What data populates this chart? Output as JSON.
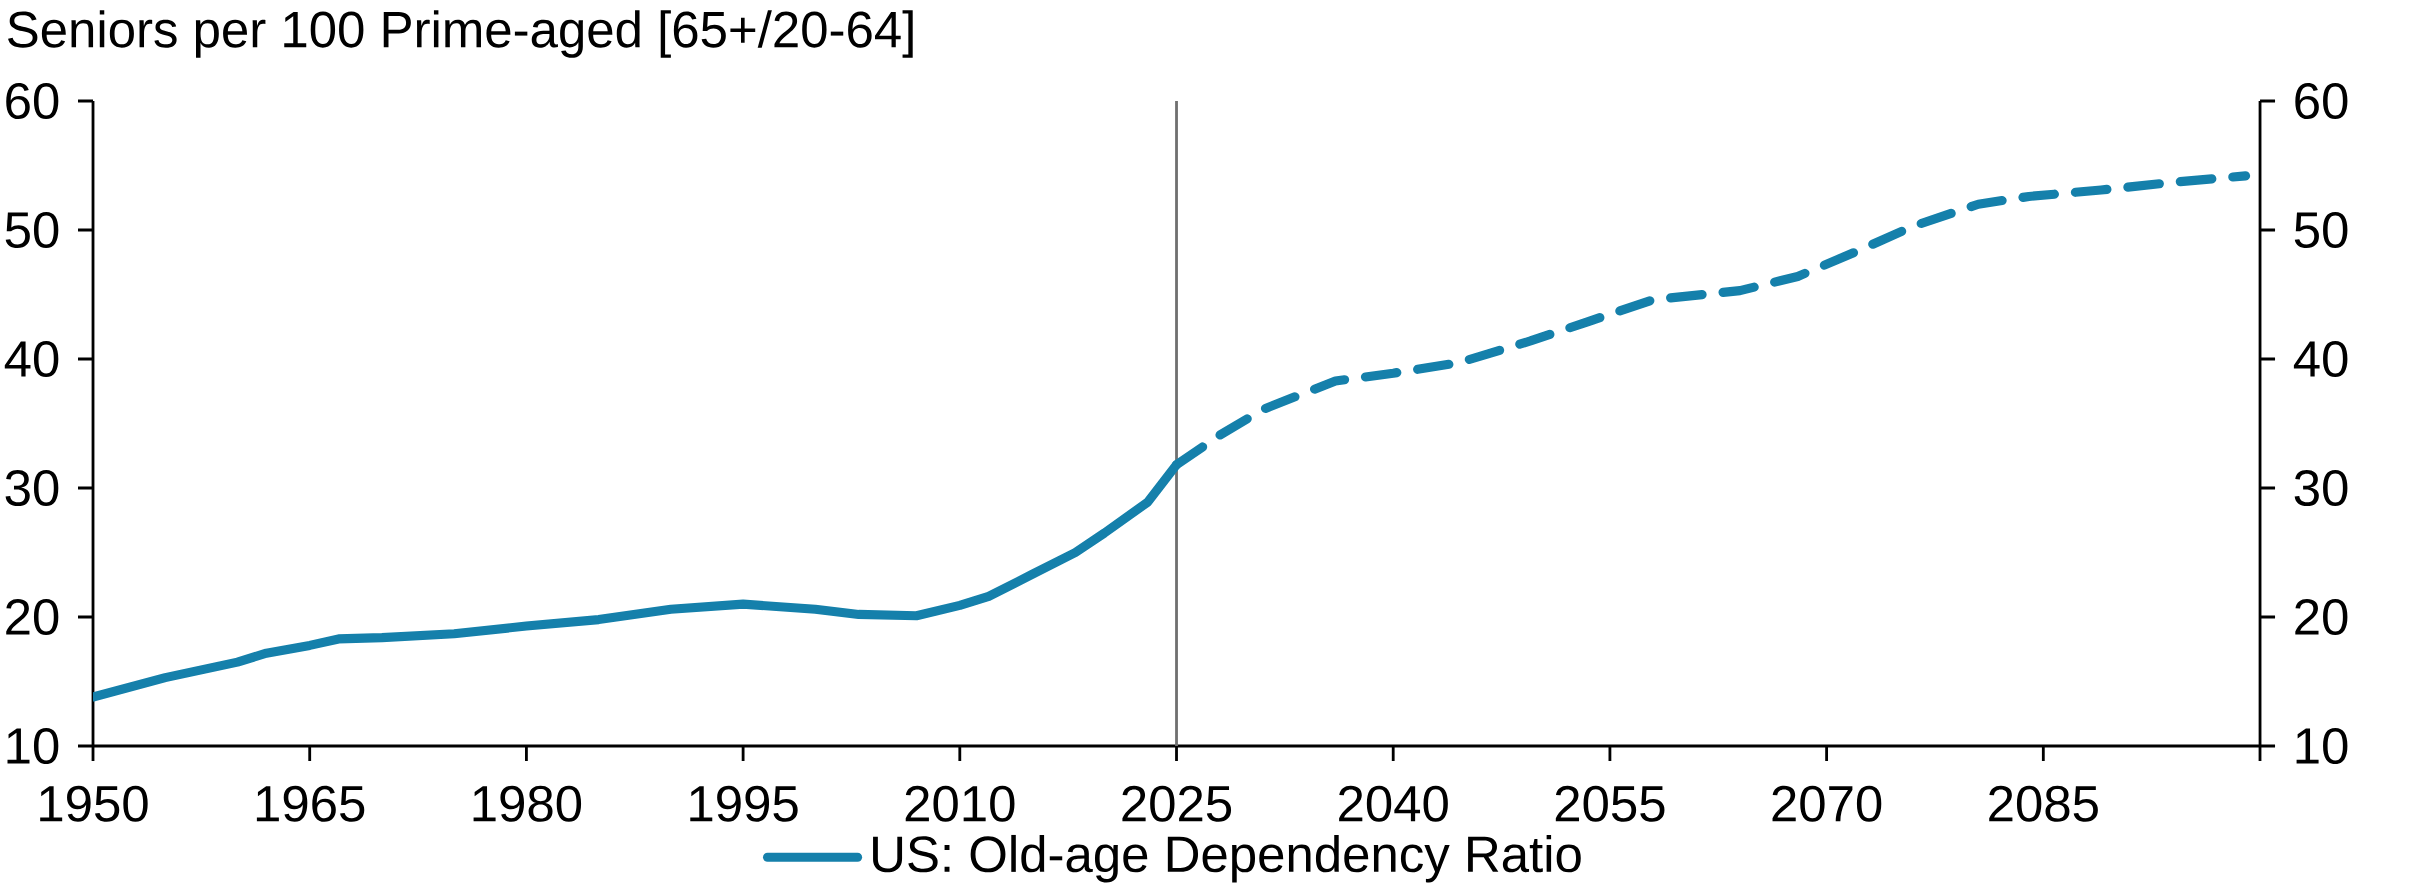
{
  "chart_data": {
    "type": "line",
    "ylabel": "Seniors per 100 Prime-aged [65+/20-64]",
    "xlim": [
      1950,
      2100
    ],
    "xticks": [
      1950,
      1965,
      1980,
      1995,
      2010,
      2025,
      2040,
      2055,
      2070,
      2085,
      {
        "value": 2100,
        "label": null
      }
    ],
    "ylim": [
      10,
      60
    ],
    "yticks": [
      10,
      20,
      30,
      40,
      50,
      60
    ],
    "y2lim": [
      10,
      60
    ],
    "y2ticks": [
      10,
      20,
      30,
      40,
      50,
      60
    ],
    "grid": false,
    "legend": "bottom",
    "marker": "none",
    "ref_lines": [
      {
        "axis": "x",
        "value": 2025,
        "color": "#707070"
      }
    ],
    "series": [
      {
        "name": "US: Old-age Dependency Ratio",
        "color": "#1580ab",
        "line_style": "solid",
        "x": [
          1950,
          1955,
          1960,
          1962,
          1965,
          1967,
          1970,
          1975,
          1980,
          1985,
          1990,
          1995,
          2000,
          2003,
          2007,
          2010,
          2012,
          2015,
          2018,
          2020,
          2023,
          2025
        ],
        "values": [
          13.8,
          15.3,
          16.5,
          17.2,
          17.8,
          18.3,
          18.4,
          18.7,
          19.3,
          19.8,
          20.6,
          21.0,
          20.6,
          20.2,
          20.1,
          20.9,
          21.6,
          23.3,
          25.0,
          26.5,
          28.9,
          31.8
        ]
      },
      {
        "color": "#1580ab",
        "line_style": "dashed",
        "x": [
          2025,
          2028,
          2031,
          2036,
          2040,
          2044.5,
          2049.5,
          2053.5,
          2058,
          2064,
          2068,
          2072,
          2076,
          2080.5,
          2084,
          2089,
          2094,
          2099
        ],
        "values": [
          31.8,
          34.1,
          36.1,
          38.3,
          38.9,
          39.7,
          41.4,
          42.9,
          44.6,
          45.3,
          46.4,
          48.3,
          50.3,
          52.0,
          52.6,
          53.1,
          53.7,
          54.2
        ]
      }
    ]
  }
}
